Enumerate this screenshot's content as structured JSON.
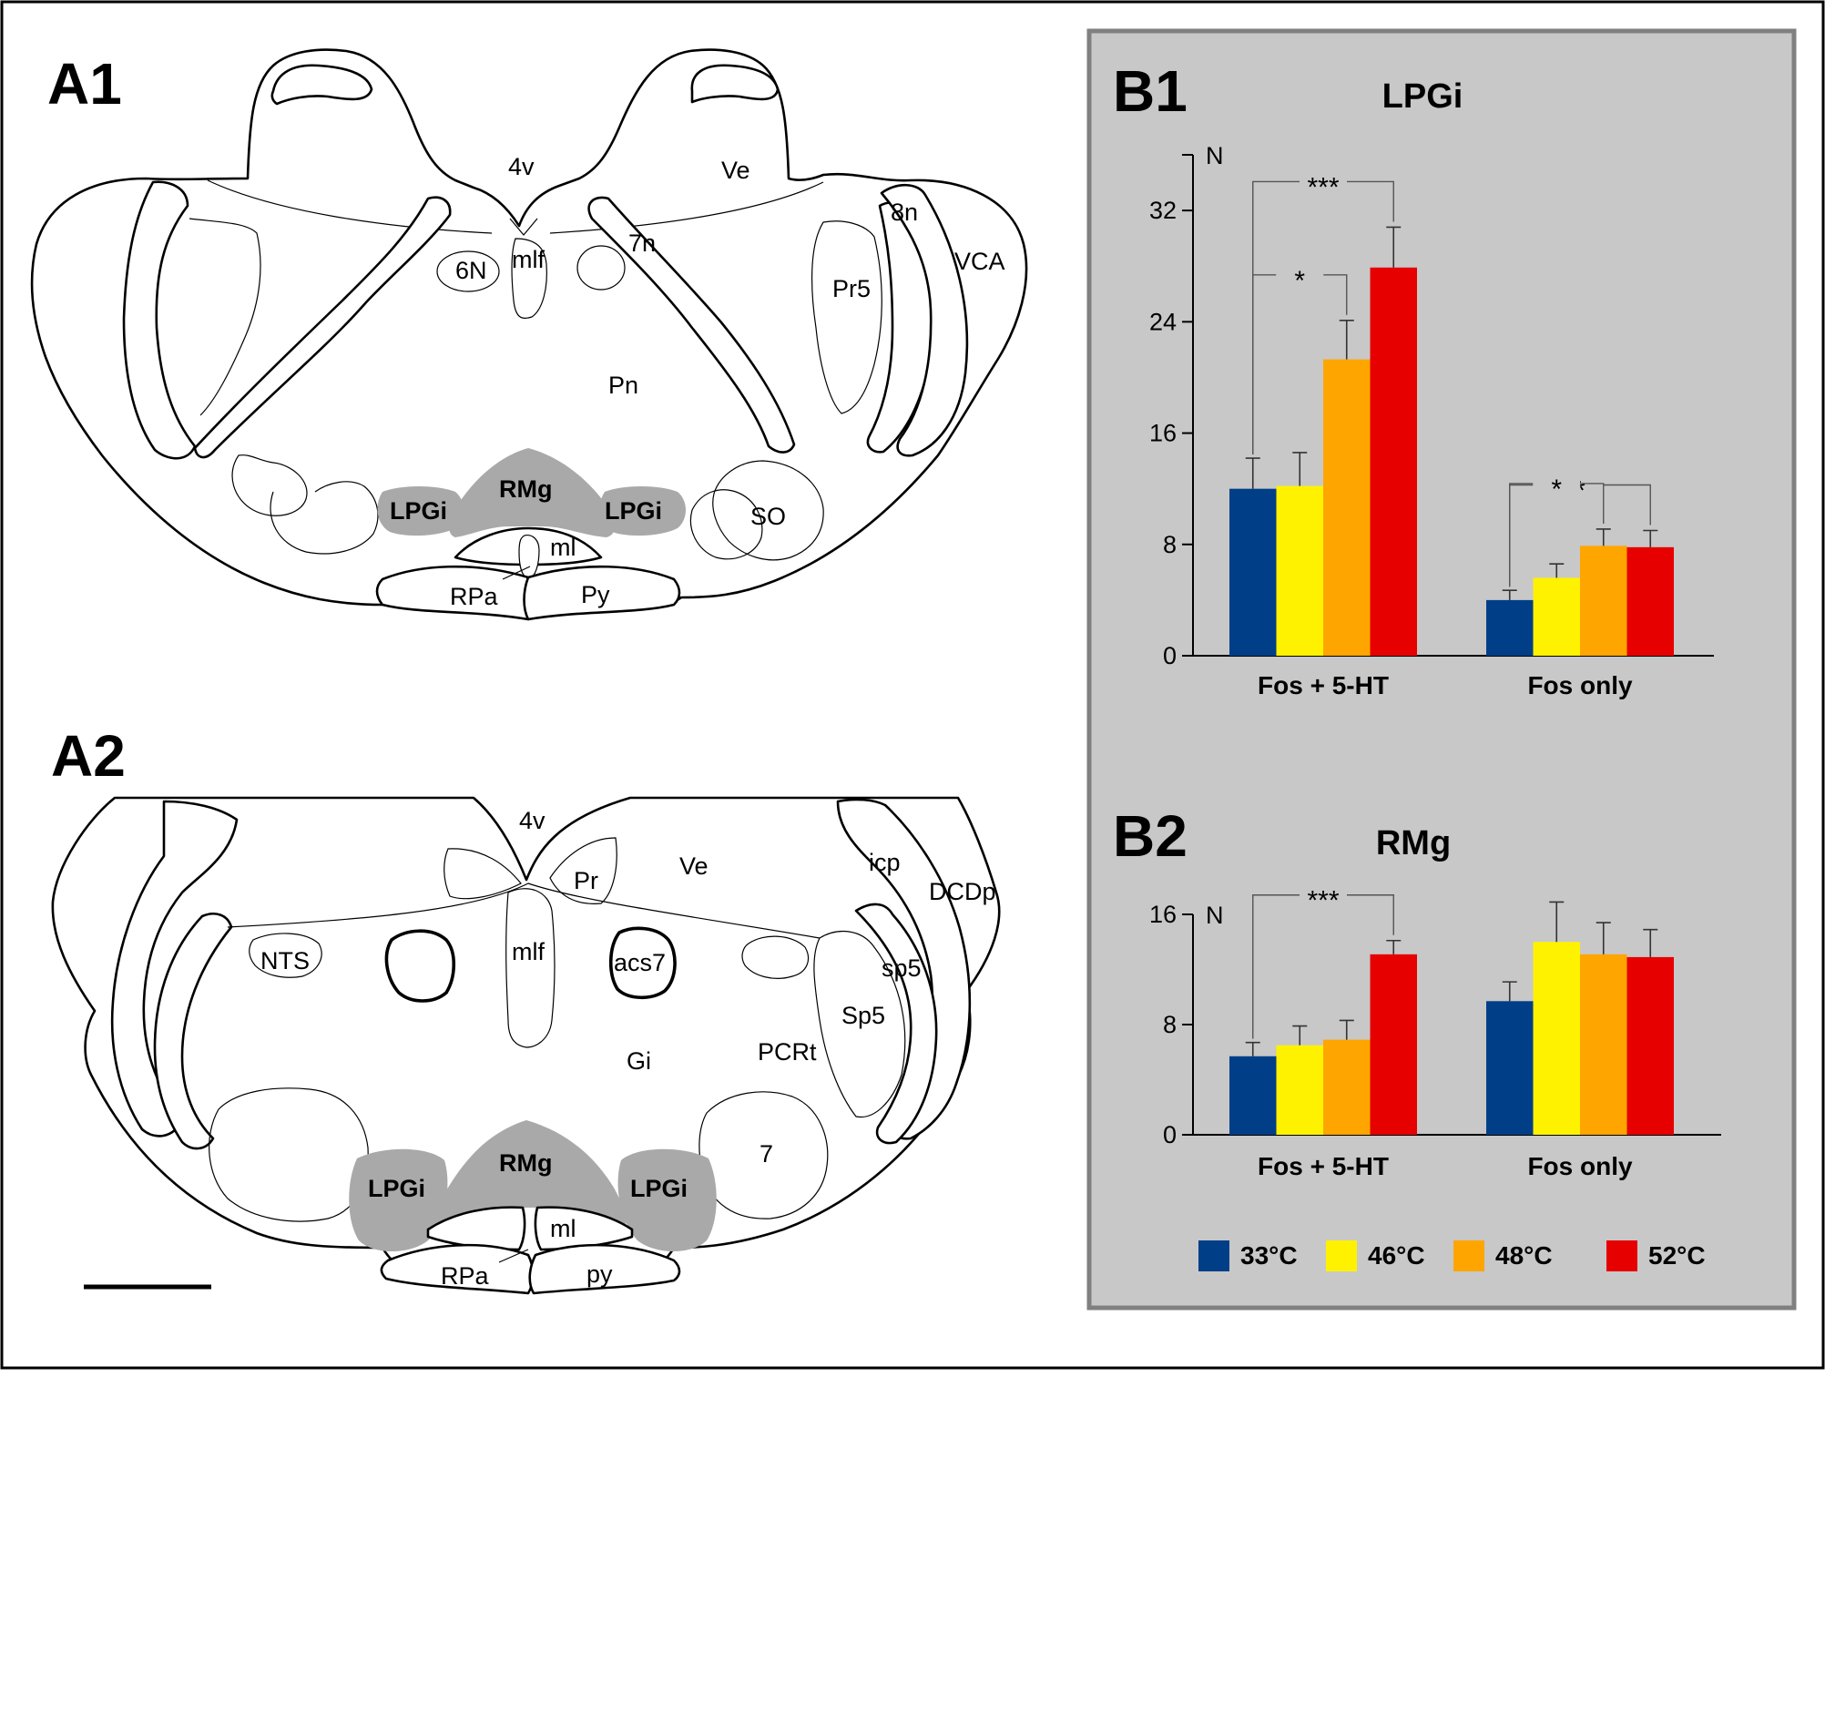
{
  "panels": {
    "a1_label": "A1",
    "a2_label": "A2",
    "b1_label": "B1",
    "b2_label": "B2"
  },
  "diagram_a1_labels": {
    "v4": "4v",
    "ve": "Ve",
    "n8": "8n",
    "n7": "7n",
    "vca": "VCA",
    "n6": "6N",
    "mlf": "mlf",
    "pr5": "Pr5",
    "pn": "Pn",
    "lpgi_left": "LPGi",
    "rmg": "RMg",
    "lpgi_right": "LPGi",
    "so": "SO",
    "ml": "ml",
    "rpa": "RPa",
    "py": "Py"
  },
  "diagram_a2_labels": {
    "v4": "4v",
    "pr": "Pr",
    "ve": "Ve",
    "icp": "icp",
    "dcdp": "DCDp",
    "nts": "NTS",
    "mlf": "mlf",
    "acs7": "acs7",
    "sp5_lower": "sp5",
    "sp5_upper": "Sp5",
    "gi": "Gi",
    "pcrt": "PCRt",
    "n7": "7",
    "lpgi_left": "LPGi",
    "rmg": "RMg",
    "lpgi_right": "LPGi",
    "ml": "ml",
    "rpa": "RPa",
    "py": "py"
  },
  "legend": [
    {
      "label": "33°C",
      "color": "#003f87"
    },
    {
      "label": "46°C",
      "color": "#fff200"
    },
    {
      "label": "48°C",
      "color": "#ffa500"
    },
    {
      "label": "52°C",
      "color": "#e60000"
    }
  ],
  "chart_data": [
    {
      "type": "bar",
      "title": "LPGi",
      "ylabel": "N",
      "ylim": [
        0,
        36
      ],
      "yticks": [
        0,
        8,
        16,
        24,
        32
      ],
      "categories": [
        "Fos + 5-HT",
        "Fos only"
      ],
      "series": [
        {
          "name": "33°C",
          "values": [
            12.0,
            4.0
          ],
          "errors": [
            2.2,
            0.7
          ]
        },
        {
          "name": "46°C",
          "values": [
            12.2,
            5.6
          ],
          "errors": [
            2.4,
            1.0
          ]
        },
        {
          "name": "48°C",
          "values": [
            21.3,
            7.9
          ],
          "errors": [
            2.8,
            1.2
          ]
        },
        {
          "name": "52°C",
          "values": [
            27.9,
            7.8
          ],
          "errors": [
            2.9,
            1.2
          ]
        }
      ],
      "significance": [
        {
          "category": 0,
          "from": 0,
          "to": 3,
          "label": "***"
        },
        {
          "category": 0,
          "from": 0,
          "to": 2,
          "label": "*"
        },
        {
          "category": 1,
          "from": 0,
          "to": 3,
          "label": "*"
        },
        {
          "category": 1,
          "from": 0,
          "to": 2,
          "label": "*"
        }
      ]
    },
    {
      "type": "bar",
      "title": "RMg",
      "ylabel": "N",
      "ylim": [
        0,
        16
      ],
      "yticks": [
        0,
        8,
        16
      ],
      "categories": [
        "Fos + 5-HT",
        "Fos only"
      ],
      "series": [
        {
          "name": "33°C",
          "values": [
            5.7,
            9.7
          ],
          "errors": [
            1.0,
            1.4
          ]
        },
        {
          "name": "46°C",
          "values": [
            6.5,
            14.0
          ],
          "errors": [
            1.4,
            2.9
          ]
        },
        {
          "name": "48°C",
          "values": [
            6.9,
            13.1
          ],
          "errors": [
            1.4,
            2.3
          ]
        },
        {
          "name": "52°C",
          "values": [
            13.1,
            12.9
          ],
          "errors": [
            1.0,
            2.0
          ]
        }
      ],
      "significance": [
        {
          "category": 0,
          "from": 0,
          "to": 3,
          "label": "***"
        }
      ]
    }
  ]
}
